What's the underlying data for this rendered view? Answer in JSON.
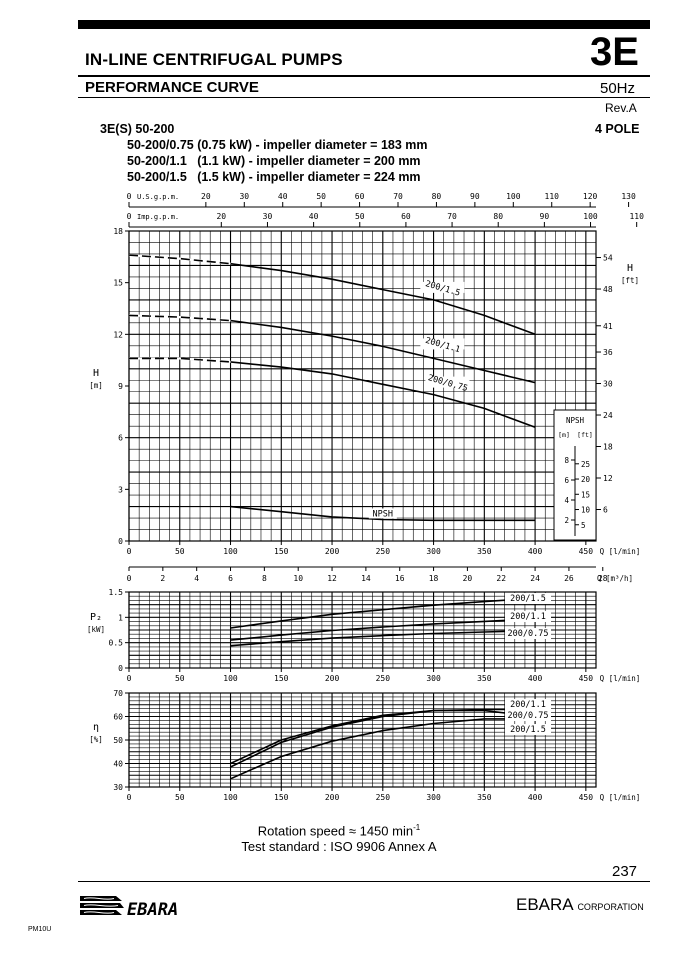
{
  "header": {
    "title": "IN-LINE CENTRIFUGAL PUMPS",
    "section": "3E",
    "subtitle": "PERFORMANCE CURVE",
    "frequency": "50Hz",
    "revision": "Rev.A",
    "model": "3E(S) 50-200",
    "poles": "4 POLE",
    "specs": [
      "50-200/0.75 (0.75 kW) - impeller diameter = 183 mm",
      "50-200/1.1   (1.1 kW) - impeller diameter = 200 mm",
      "50-200/1.5   (1.5 kW) - impeller diameter = 224 mm"
    ]
  },
  "footer": {
    "rotation_label": "Rotation speed ≈ 1450 min",
    "rotation_sup": "-1",
    "standard": "Test standard : ISO 9906 Annex A",
    "page_number": "237",
    "corporation": "EBARA",
    "corporation_suffix": "CORPORATION",
    "logo_text": "EBARA",
    "code": "PM10U"
  },
  "chart_data": [
    {
      "type": "line",
      "name": "head",
      "ylabel": "H",
      "ylabel_unit": "[m]",
      "y2label": "H",
      "y2label_unit": "[ft]",
      "xlabel": "Q [l/min]",
      "xlim": [
        0,
        460
      ],
      "ylim": [
        0,
        18
      ],
      "xticks": [
        0,
        50,
        100,
        150,
        200,
        250,
        300,
        350,
        400,
        450
      ],
      "yticks": [
        0,
        3,
        6,
        9,
        12,
        15,
        18
      ],
      "y2ticks": [
        6,
        12,
        18,
        24,
        30,
        36,
        41,
        48,
        54
      ],
      "top_axes": [
        {
          "label": "U.S.g.p.m.",
          "ticks": [
            0,
            20,
            30,
            40,
            50,
            60,
            70,
            80,
            90,
            100,
            110,
            120,
            130
          ]
        },
        {
          "label": "Imp.g.p.m.",
          "ticks": [
            0,
            20,
            30,
            40,
            50,
            60,
            70,
            80,
            90,
            100,
            110
          ]
        }
      ],
      "series": [
        {
          "name": "200/1.5",
          "x": [
            0,
            50,
            100,
            150,
            200,
            250,
            300,
            350,
            400
          ],
          "y": [
            16.6,
            16.4,
            16.1,
            15.7,
            15.2,
            14.6,
            14.0,
            13.1,
            12.0
          ],
          "dashed_until": 100
        },
        {
          "name": "200/1.1",
          "x": [
            0,
            50,
            100,
            150,
            200,
            250,
            300,
            350,
            400
          ],
          "y": [
            13.1,
            13.0,
            12.8,
            12.4,
            11.9,
            11.3,
            10.6,
            9.9,
            9.2
          ],
          "dashed_until": 100
        },
        {
          "name": "200/0.75",
          "x": [
            0,
            50,
            100,
            150,
            200,
            250,
            300,
            350,
            400
          ],
          "y": [
            10.6,
            10.6,
            10.4,
            10.1,
            9.7,
            9.1,
            8.5,
            7.7,
            6.6
          ],
          "dashed_until": 100
        },
        {
          "name": "NPSH",
          "x": [
            100,
            150,
            200,
            250,
            300,
            350,
            400
          ],
          "y": [
            2.0,
            1.7,
            1.4,
            1.25,
            1.2,
            1.2,
            1.2
          ]
        }
      ],
      "npsh_inset": {
        "title": "NPSH",
        "unit_m": "[m]",
        "unit_ft": "[ft]",
        "m_ticks": [
          2,
          4,
          6,
          8
        ],
        "ft_ticks": [
          5,
          10,
          15,
          20,
          25
        ]
      }
    },
    {
      "type": "axis",
      "name": "flow-m3h",
      "xlabel": "Q [m³/h]",
      "xticks": [
        0,
        2,
        4,
        6,
        8,
        10,
        12,
        14,
        16,
        18,
        20,
        22,
        24,
        26,
        28
      ]
    },
    {
      "type": "line",
      "name": "power",
      "ylabel": "P₂",
      "ylabel_unit": "[kW]",
      "xlabel": "Q [l/min]",
      "xlim": [
        0,
        460
      ],
      "ylim": [
        0,
        1.5
      ],
      "xticks": [
        0,
        50,
        100,
        150,
        200,
        250,
        300,
        350,
        400,
        450
      ],
      "yticks": [
        0,
        0.5,
        1,
        1.5
      ],
      "series": [
        {
          "name": "200/1.5",
          "x": [
            100,
            150,
            200,
            250,
            300,
            350,
            400
          ],
          "y": [
            0.79,
            0.93,
            1.06,
            1.15,
            1.24,
            1.31,
            1.38
          ]
        },
        {
          "name": "200/1.1",
          "x": [
            100,
            150,
            200,
            250,
            300,
            350,
            400
          ],
          "y": [
            0.55,
            0.65,
            0.74,
            0.81,
            0.87,
            0.92,
            0.97
          ]
        },
        {
          "name": "200/0.75",
          "x": [
            100,
            150,
            200,
            250,
            300,
            350,
            400
          ],
          "y": [
            0.44,
            0.52,
            0.59,
            0.64,
            0.68,
            0.71,
            0.74
          ]
        }
      ]
    },
    {
      "type": "line",
      "name": "efficiency",
      "ylabel": "η",
      "ylabel_unit": "[%]",
      "xlabel": "Q [l/min]",
      "xlim": [
        0,
        460
      ],
      "ylim": [
        30,
        70
      ],
      "xticks": [
        0,
        50,
        100,
        150,
        200,
        250,
        300,
        350,
        400,
        450
      ],
      "yticks": [
        30,
        40,
        50,
        60,
        70
      ],
      "series": [
        {
          "name": "200/1.1",
          "x": [
            100,
            150,
            200,
            250,
            300,
            350,
            400
          ],
          "y": [
            40,
            50,
            56,
            60.5,
            62.5,
            63,
            63
          ]
        },
        {
          "name": "200/0.75",
          "x": [
            100,
            150,
            200,
            250,
            300,
            350,
            400
          ],
          "y": [
            38.5,
            49,
            55.5,
            60,
            62.5,
            62.5,
            60
          ]
        },
        {
          "name": "200/1.5",
          "x": [
            100,
            150,
            200,
            250,
            300,
            350,
            400
          ],
          "y": [
            33.5,
            43,
            49.5,
            54,
            57,
            59,
            59
          ]
        }
      ]
    }
  ]
}
